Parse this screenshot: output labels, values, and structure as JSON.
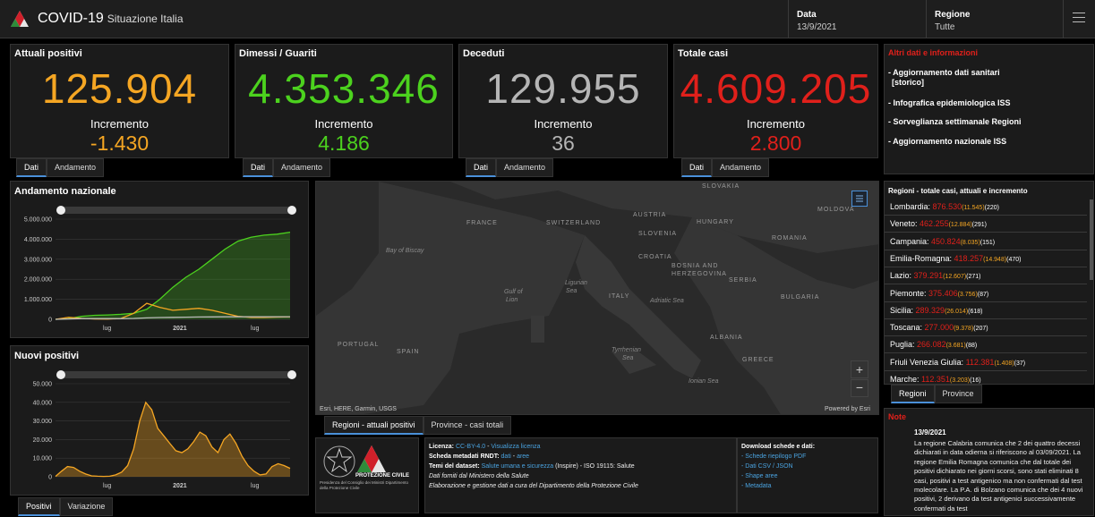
{
  "header": {
    "title": "COVID-19",
    "subtitle": "Situazione Italia",
    "date_label": "Data",
    "date_value": "13/9/2021",
    "region_label": "Regione",
    "region_value": "Tutte"
  },
  "cards": [
    {
      "title": "Attuali positivi",
      "value": "125.904",
      "inc_label": "Incremento",
      "inc": "-1.430",
      "color": "#f5a623",
      "tabs": [
        "Dati",
        "Andamento"
      ]
    },
    {
      "title": "Dimessi / Guariti",
      "value": "4.353.346",
      "inc_label": "Incremento",
      "inc": "4.186",
      "color": "#4cd21e",
      "tabs": [
        "Dati",
        "Andamento"
      ]
    },
    {
      "title": "Deceduti",
      "value": "129.955",
      "inc_label": "Incremento",
      "inc": "36",
      "color": "#b5b5b5",
      "tabs": [
        "Dati",
        "Andamento"
      ]
    },
    {
      "title": "Totale casi",
      "value": "4.609.205",
      "inc_label": "Incremento",
      "inc": "2.800",
      "color": "#e0201b",
      "tabs": [
        "Dati",
        "Andamento"
      ]
    }
  ],
  "info": {
    "title": "Altri dati e informazioni",
    "links": [
      "- Aggiornamento dati sanitari",
      "[storico]",
      "- Infografica epidemiologica ISS",
      "- Sorveglianza settimanale Regioni",
      "- Aggiornamento nazionale ISS"
    ]
  },
  "chart_data": [
    {
      "type": "line",
      "title": "Andamento nazionale",
      "y_ticks": [
        "5.000.000",
        "4.000.000",
        "3.000.000",
        "2.000.000",
        "1.000.000",
        "0"
      ],
      "x_ticks": [
        "lug",
        "2021",
        "lug"
      ],
      "ylim": [
        0,
        5000000
      ],
      "series": [
        {
          "color": "#4cd21e",
          "values": [
            0,
            30000,
            150000,
            200000,
            220000,
            250000,
            300000,
            500000,
            1000000,
            1600000,
            2100000,
            2500000,
            3000000,
            3500000,
            3900000,
            4100000,
            4200000,
            4250000,
            4350000
          ]
        },
        {
          "color": "#f5a623",
          "values": [
            0,
            100000,
            50000,
            20000,
            15000,
            40000,
            300000,
            800000,
            600000,
            450000,
            500000,
            550000,
            450000,
            300000,
            150000,
            100000,
            100000,
            110000,
            125904
          ]
        },
        {
          "color": "#bbbbbb",
          "values": [
            0,
            20000,
            35000,
            35000,
            35000,
            36000,
            45000,
            70000,
            90000,
            100000,
            105000,
            115000,
            120000,
            125000,
            127000,
            128000,
            129000,
            129500,
            129955
          ]
        }
      ]
    },
    {
      "type": "area",
      "title": "Nuovi positivi",
      "y_ticks": [
        "50.000",
        "40.000",
        "30.000",
        "20.000",
        "10.000",
        "0"
      ],
      "x_ticks": [
        "lug",
        "2021",
        "lug"
      ],
      "ylim": [
        0,
        50000
      ],
      "series": [
        {
          "color": "#f5a623",
          "values": [
            200,
            3000,
            5500,
            5000,
            3000,
            1500,
            500,
            300,
            200,
            300,
            1000,
            2500,
            6000,
            15000,
            30000,
            40000,
            36000,
            26000,
            22000,
            18000,
            14000,
            13000,
            15000,
            19000,
            24000,
            22000,
            16000,
            13000,
            20000,
            23000,
            18000,
            11000,
            6000,
            3000,
            1000,
            1500,
            5500,
            7000,
            6000,
            4500
          ]
        }
      ]
    }
  ],
  "chart_tabs_1": [],
  "chart_tabs_2": [
    "Positivi",
    "Variazione"
  ],
  "map": {
    "labels": {
      "france": "FRANCE",
      "switzerland": "SWITZERLAND",
      "austria": "AUSTRIA",
      "hungary": "HUNGARY",
      "slovakia": "SLOVAKIA",
      "moldova": "MOLDOVA",
      "romania": "ROMANIA",
      "slovenia": "SLOVENIA",
      "croatia": "CROATIA",
      "bosnia": "BOSNIA AND",
      "herzegovina": "HERZEGOVINA",
      "serbia": "SERBIA",
      "bulgaria": "BULGARIA",
      "italy": "ITALY",
      "albania": "ALBANIA",
      "greece": "GREECE",
      "portugal": "PORTUGAL",
      "spain": "SPAIN"
    },
    "seas": {
      "biscay": "Bay of Biscay",
      "lion": "Gulf of",
      "lion2": "Lion",
      "ligurian": "Ligurian",
      "ligurian2": "Sea",
      "adriatic": "Adriatic Sea",
      "tyrrhenian": "Tyrrhenian",
      "tyrrhenian2": "Sea",
      "ionian": "Ionian Sea"
    },
    "attribution": "Esri, HERE, Garmin, USGS",
    "powered": "Powered by Esri",
    "tabs": [
      "Regioni - attuali positivi",
      "Province - casi totali"
    ]
  },
  "regions": {
    "title": "Regioni - totale casi, attuali e incremento",
    "rows": [
      {
        "name": "Lombardia:",
        "total": "876.530",
        "current": "(11.545)",
        "inc": "(220)"
      },
      {
        "name": "Veneto:",
        "total": "462.255",
        "current": "(12.884)",
        "inc": "(291)"
      },
      {
        "name": "Campania:",
        "total": "450.824",
        "current": "(8.035)",
        "inc": "(151)"
      },
      {
        "name": "Emilia-Romagna:",
        "total": "418.257",
        "current": "(14.948)",
        "inc": "(470)"
      },
      {
        "name": "Lazio:",
        "total": "379.291",
        "current": "(12.607)",
        "inc": "(271)"
      },
      {
        "name": "Piemonte:",
        "total": "375.406",
        "current": "(3.756)",
        "inc": "(87)"
      },
      {
        "name": "Sicilia:",
        "total": "289.329",
        "current": "(26.014)",
        "inc": "(618)"
      },
      {
        "name": "Toscana:",
        "total": "277.000",
        "current": "(9.378)",
        "inc": "(207)"
      },
      {
        "name": "Puglia:",
        "total": "266.082",
        "current": "(3.681)",
        "inc": "(88)"
      },
      {
        "name": "Friuli Venezia Giulia:",
        "total": "112.381",
        "current": "(1.408)",
        "inc": "(37)"
      },
      {
        "name": "Marche:",
        "total": "112.351",
        "current": "(3.203)",
        "inc": "(16)"
      }
    ],
    "tabs": [
      "Regioni",
      "Province"
    ]
  },
  "note": {
    "title": "Note",
    "date": "13/9/2021",
    "text": "La regione Calabria comunica che 2 dei quattro decessi dichiarati in data odierna si riferiscono al 03/09/2021. La regione Emilia Romagna comunica che dal totale dei positivi dichiarato nei giorni scorsi, sono stati eliminati 8 casi, positivi a test antigenico ma non confermati dal test molecolare. La P.A. di Bolzano comunica che dei 4 nuovi positivi, 2 derivano da test antigenici successivamente confermati da test"
  },
  "footer": {
    "logo1_text": "Presidenza del Consiglio dei Ministri Dipartimento della Protezione Civile",
    "logo2_text": "PROTEZIONE CIVILE",
    "licenza_label": "Licenza:",
    "licenza_value": "CC-BY-4.0",
    "licenza_link": "Visualizza licenza",
    "scheda_label": "Scheda metadati RNDT:",
    "scheda_link1": "dati",
    "scheda_link2": "aree",
    "temi_label": "Temi del dataset:",
    "temi_link": "Salute umana e sicurezza",
    "temi_rest": "(Inspire) - ISO 19115: Salute",
    "forniti": "Dati forniti dal Ministero della Salute",
    "elaborazione": "Elaborazione e gestione dati a cura del Dipartimento della Protezione Civile",
    "download_title": "Download schede e dati:",
    "download_links": [
      "- Schede riepilogo PDF",
      "- Dati CSV / JSON",
      "- Shape aree",
      "- Metadata"
    ]
  }
}
